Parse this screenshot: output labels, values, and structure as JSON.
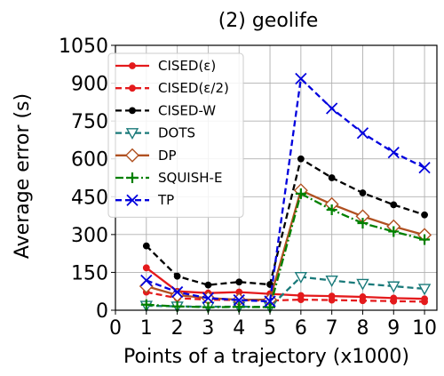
{
  "chart_data": {
    "type": "line",
    "title": "(2) geolife",
    "xlabel": "Points of a trajectory (x1000)",
    "ylabel": "Average error (s)",
    "xlim": [
      0,
      10.4
    ],
    "ylim": [
      0,
      1050
    ],
    "xticks": [
      "0",
      "1",
      "2",
      "3",
      "4",
      "5",
      "6",
      "7",
      "8",
      "9",
      "10"
    ],
    "yticks": [
      "0",
      "150",
      "300",
      "450",
      "600",
      "750",
      "900",
      "1050"
    ],
    "grid": true,
    "legend_position": "top-left",
    "x": [
      1,
      2,
      3,
      4,
      5,
      6,
      7,
      8,
      9,
      10
    ],
    "series": [
      {
        "name": "CISED(ε)",
        "color": "#e41a1c",
        "dash": "solid",
        "marker": "filled-circle",
        "values": [
          168,
          75,
          68,
          72,
          65,
          58,
          56,
          53,
          48,
          45
        ]
      },
      {
        "name": "CISED(ε/2)",
        "color": "#e41a1c",
        "dash": "dashed",
        "marker": "filled-circle",
        "values": [
          72,
          48,
          42,
          40,
          38,
          42,
          40,
          38,
          36,
          34
        ]
      },
      {
        "name": "CISED-W",
        "color": "#000000",
        "dash": "dashed",
        "marker": "filled-circle",
        "values": [
          255,
          135,
          100,
          112,
          102,
          600,
          525,
          465,
          418,
          378
        ]
      },
      {
        "name": "DOTS",
        "color": "#1a7a7a",
        "dash": "dashed",
        "marker": "triangle-down",
        "values": [
          18,
          15,
          14,
          14,
          13,
          132,
          118,
          105,
          95,
          85
        ]
      },
      {
        "name": "DP",
        "color": "#b05020",
        "dash": "solid",
        "marker": "diamond",
        "values": [
          95,
          60,
          48,
          42,
          42,
          475,
          420,
          372,
          332,
          298
        ]
      },
      {
        "name": "SQUISH-E",
        "color": "#008000",
        "dash": "dashdot",
        "marker": "plus",
        "values": [
          22,
          15,
          12,
          13,
          12,
          462,
          398,
          345,
          312,
          280
        ]
      },
      {
        "name": "TP",
        "color": "#0000dd",
        "dash": "dashed",
        "marker": "x",
        "values": [
          118,
          72,
          48,
          40,
          35,
          918,
          800,
          702,
          625,
          565
        ]
      }
    ]
  }
}
